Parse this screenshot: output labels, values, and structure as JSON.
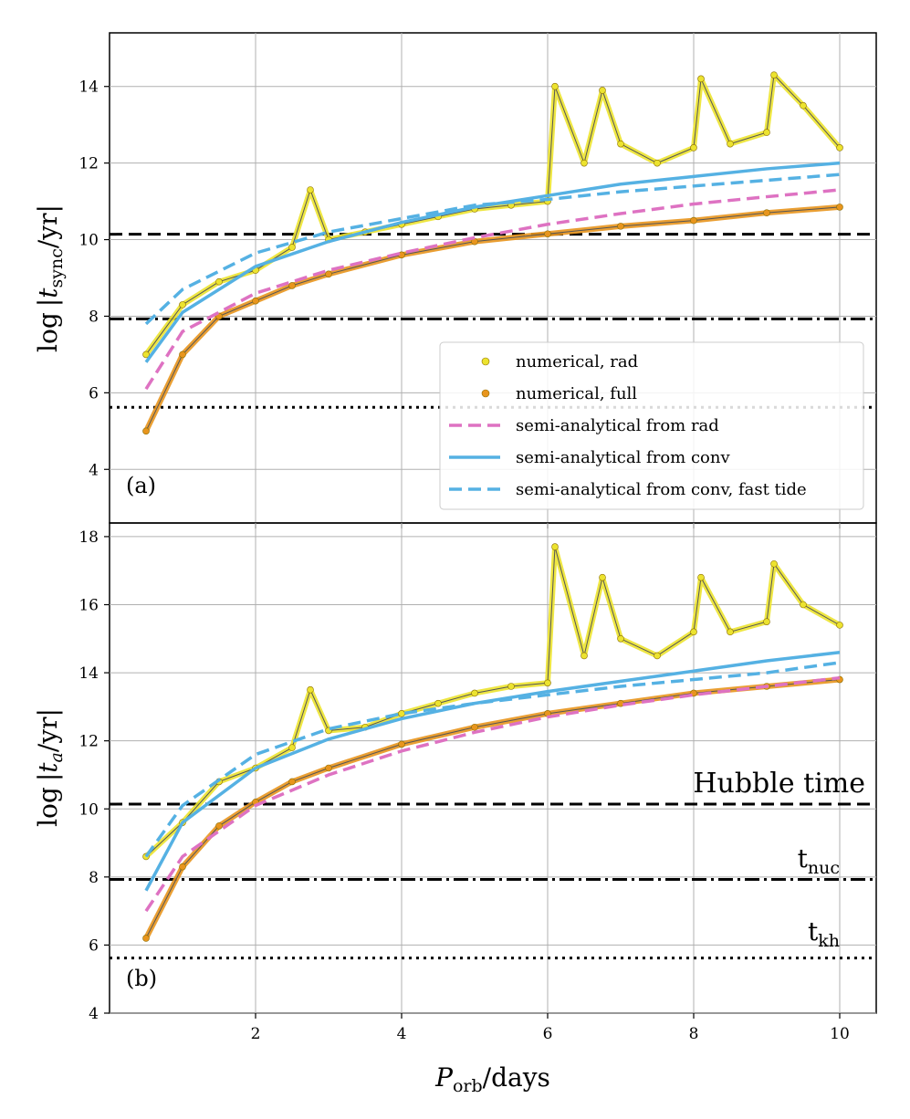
{
  "colors": {
    "numerical_rad": "#ece32f",
    "numerical_full": "#e8951d",
    "semi_rad": "#de72c2",
    "semi_conv": "#55b1e3",
    "semi_conv_fast": "#55b1e3",
    "grid": "#b0b0b0",
    "hline": "#000000"
  },
  "chart_data": [
    {
      "panel": "(a)",
      "type": "line",
      "ylabel": "log |t_sync / yr|",
      "xlim": [
        0,
        10.5
      ],
      "ylim": [
        2.6,
        15.4
      ],
      "yticks": [
        4,
        6,
        8,
        10,
        12,
        14
      ],
      "hlines": [
        {
          "name": "Hubble time",
          "y": 10.14,
          "style": "dashed"
        },
        {
          "name": "t_nuc",
          "y": 7.93,
          "style": "dashdot"
        },
        {
          "name": "t_kh",
          "y": 5.62,
          "style": "dotted"
        }
      ],
      "series": [
        {
          "name": "semi-analytical from rad",
          "style": "dashed",
          "color": "semi_rad",
          "x": [
            0.5,
            1,
            2,
            3,
            4,
            5,
            6,
            7,
            8,
            9,
            10
          ],
          "y": [
            6.1,
            7.6,
            8.6,
            9.2,
            9.65,
            10.05,
            10.4,
            10.68,
            10.93,
            11.12,
            11.3
          ]
        },
        {
          "name": "semi-analytical from conv",
          "style": "solid",
          "color": "semi_conv",
          "x": [
            0.5,
            1,
            2,
            3,
            4,
            5,
            6,
            7,
            8,
            9,
            10
          ],
          "y": [
            6.8,
            8.1,
            9.3,
            9.95,
            10.45,
            10.85,
            11.15,
            11.45,
            11.65,
            11.85,
            12.0
          ]
        },
        {
          "name": "semi-analytical from conv, fast tide",
          "style": "dashed",
          "color": "semi_conv_fast",
          "x": [
            0.5,
            1,
            2,
            3,
            4,
            5,
            6,
            7,
            8,
            9,
            10
          ],
          "y": [
            7.8,
            8.7,
            9.65,
            10.2,
            10.55,
            10.9,
            11.05,
            11.25,
            11.4,
            11.55,
            11.7
          ]
        },
        {
          "name": "numerical, rad",
          "style": "scatter-line",
          "color": "numerical_rad",
          "x": [
            0.5,
            1,
            1.5,
            2,
            2.5,
            2.75,
            3,
            3.5,
            4,
            4.5,
            5,
            5.5,
            6,
            6.1,
            6.5,
            6.75,
            7,
            7.5,
            8,
            8.1,
            8.5,
            9,
            9.1,
            9.5,
            10
          ],
          "y": [
            7.0,
            8.3,
            8.9,
            9.2,
            9.8,
            11.3,
            10.0,
            10.2,
            10.4,
            10.6,
            10.8,
            10.9,
            11.0,
            14.0,
            12.0,
            13.9,
            12.5,
            12.0,
            12.4,
            14.2,
            12.5,
            12.8,
            14.3,
            13.5,
            12.4
          ]
        },
        {
          "name": "numerical, full",
          "style": "scatter-line",
          "color": "numerical_full",
          "x": [
            0.5,
            1,
            1.5,
            2,
            2.5,
            3,
            4,
            5,
            6,
            7,
            8,
            9,
            10
          ],
          "y": [
            5.0,
            7.0,
            8.0,
            8.4,
            8.8,
            9.1,
            9.6,
            9.95,
            10.15,
            10.35,
            10.5,
            10.7,
            10.85
          ]
        }
      ]
    },
    {
      "panel": "(b)",
      "type": "line",
      "ylabel": "log |t_a / yr|",
      "xlabel": "P_orb / days",
      "xlim": [
        0,
        10.5
      ],
      "ylim": [
        4,
        18.4
      ],
      "yticks": [
        4,
        6,
        8,
        10,
        12,
        14,
        16,
        18
      ],
      "xticks": [
        2,
        4,
        6,
        8,
        10
      ],
      "hlines": [
        {
          "name": "Hubble time",
          "y": 10.14,
          "style": "dashed"
        },
        {
          "name": "t_nuc",
          "y": 7.93,
          "style": "dashdot"
        },
        {
          "name": "t_kh",
          "y": 5.62,
          "style": "dotted"
        }
      ],
      "series": [
        {
          "name": "semi-analytical from rad",
          "style": "dashed",
          "color": "semi_rad",
          "x": [
            0.5,
            1,
            2,
            3,
            4,
            5,
            6,
            7,
            8,
            9,
            10
          ],
          "y": [
            7.0,
            8.6,
            10.1,
            11.0,
            11.7,
            12.25,
            12.7,
            13.05,
            13.35,
            13.6,
            13.85
          ]
        },
        {
          "name": "semi-analytical from conv",
          "style": "solid",
          "color": "semi_conv",
          "x": [
            0.5,
            1,
            2,
            3,
            4,
            5,
            6,
            7,
            8,
            9,
            10
          ],
          "y": [
            7.6,
            9.6,
            11.2,
            12.05,
            12.65,
            13.1,
            13.45,
            13.75,
            14.05,
            14.35,
            14.6
          ]
        },
        {
          "name": "semi-analytical from conv, fast tide",
          "style": "dashed",
          "color": "semi_conv_fast",
          "x": [
            0.5,
            1,
            2,
            3,
            4,
            5,
            6,
            7,
            8,
            9,
            10
          ],
          "y": [
            8.6,
            10.1,
            11.6,
            12.35,
            12.8,
            13.1,
            13.35,
            13.6,
            13.8,
            14.0,
            14.3
          ]
        },
        {
          "name": "numerical, rad",
          "style": "scatter-line",
          "color": "numerical_rad",
          "x": [
            0.5,
            1,
            1.5,
            2,
            2.5,
            2.75,
            3,
            3.5,
            4,
            4.5,
            5,
            5.5,
            6,
            6.1,
            6.5,
            6.75,
            7,
            7.5,
            8,
            8.1,
            8.5,
            9,
            9.1,
            9.5,
            10
          ],
          "y": [
            8.6,
            9.6,
            10.8,
            11.2,
            11.8,
            13.5,
            12.3,
            12.4,
            12.8,
            13.1,
            13.4,
            13.6,
            13.7,
            17.7,
            14.5,
            16.8,
            15.0,
            14.5,
            15.2,
            16.8,
            15.2,
            15.5,
            17.2,
            16.0,
            15.4
          ]
        },
        {
          "name": "numerical, full",
          "style": "scatter-line",
          "color": "numerical_full",
          "x": [
            0.5,
            1,
            1.5,
            2,
            2.5,
            3,
            4,
            5,
            6,
            7,
            8,
            9,
            10
          ],
          "y": [
            6.2,
            8.3,
            9.5,
            10.2,
            10.8,
            11.2,
            11.9,
            12.4,
            12.8,
            13.1,
            13.4,
            13.6,
            13.8
          ]
        }
      ]
    }
  ],
  "labels": {
    "panel_a": "(a)",
    "panel_b": "(b)",
    "ylabel_a_prefix": "log",
    "ylabel_a": "|t",
    "ylabel_a_sub": "sync",
    "ylabel_a_suffix": "/yr|",
    "ylabel_b_prefix": "log",
    "ylabel_b": "|t",
    "ylabel_b_sub": "a",
    "ylabel_b_suffix": "/yr|",
    "xlabel_main": "P",
    "xlabel_sub": "orb",
    "xlabel_suffix": "/days",
    "hubble": "Hubble time",
    "tnuc_main": "t",
    "tnuc_sub": "nuc",
    "tkh_main": "t",
    "tkh_sub": "kh"
  },
  "legend": [
    {
      "label": "numerical,  rad",
      "kind": "marker",
      "color": "numerical_rad"
    },
    {
      "label": "numerical,  full",
      "kind": "marker",
      "color": "numerical_full"
    },
    {
      "label": "semi-analytical from rad",
      "kind": "dashed",
      "color": "semi_rad"
    },
    {
      "label": "semi-analytical from conv",
      "kind": "solid",
      "color": "semi_conv"
    },
    {
      "label": "semi-analytical from conv,  fast tide",
      "kind": "dashed",
      "color": "semi_conv_fast"
    }
  ]
}
